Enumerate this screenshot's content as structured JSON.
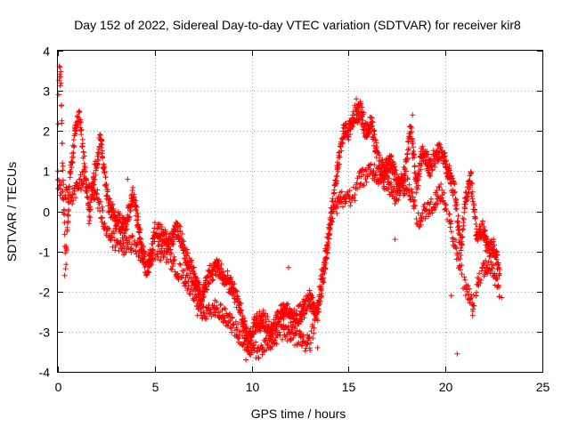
{
  "chart_data": {
    "type": "scatter",
    "title": "Day 152 of 2022, Sidereal Day-to-day VTEC variation (SDTVAR) for receiver kir8",
    "xlabel": "GPS time / hours",
    "ylabel": "SDTVAR / TECUs",
    "xlim": [
      0,
      25
    ],
    "ylim": [
      -4,
      4
    ],
    "xticks": [
      0,
      5,
      10,
      15,
      20,
      25
    ],
    "yticks": [
      -4,
      -3,
      -2,
      -1,
      0,
      1,
      2,
      3,
      4
    ],
    "xtick_labels": [
      "0",
      "5",
      "10",
      "15",
      "20",
      "25"
    ],
    "ytick_labels": [
      "-4",
      "-3",
      "-2",
      "-1",
      "0",
      "1",
      "2",
      "3",
      "4"
    ],
    "grid": true,
    "marker": "+",
    "series": [
      {
        "name": "SDTVAR",
        "color": "#ff0000",
        "trend": [
          [
            0.0,
            1.2
          ],
          [
            0.05,
            3.5
          ],
          [
            0.15,
            3.3
          ],
          [
            0.25,
            1.0
          ],
          [
            0.4,
            -1.3
          ],
          [
            0.6,
            0.7
          ],
          [
            0.9,
            2.1
          ],
          [
            1.1,
            2.4
          ],
          [
            1.4,
            1.0
          ],
          [
            1.6,
            -0.2
          ],
          [
            1.9,
            1.0
          ],
          [
            2.2,
            1.8
          ],
          [
            2.4,
            1.0
          ],
          [
            2.6,
            0.2
          ],
          [
            3.0,
            -0.2
          ],
          [
            3.5,
            -0.4
          ],
          [
            3.9,
            0.5
          ],
          [
            4.2,
            -0.5
          ],
          [
            4.6,
            -1.6
          ],
          [
            5.0,
            -0.5
          ],
          [
            5.4,
            -0.6
          ],
          [
            5.8,
            -0.8
          ],
          [
            6.2,
            -0.4
          ],
          [
            6.6,
            -1.1
          ],
          [
            7.0,
            -1.6
          ],
          [
            7.4,
            -2.2
          ],
          [
            7.8,
            -1.6
          ],
          [
            8.2,
            -1.4
          ],
          [
            8.6,
            -1.6
          ],
          [
            9.0,
            -1.9
          ],
          [
            9.4,
            -2.4
          ],
          [
            9.8,
            -3.2
          ],
          [
            10.2,
            -2.8
          ],
          [
            10.6,
            -2.7
          ],
          [
            11.0,
            -3.0
          ],
          [
            11.4,
            -2.6
          ],
          [
            11.8,
            -2.5
          ],
          [
            12.2,
            -2.7
          ],
          [
            12.6,
            -2.5
          ],
          [
            13.0,
            -2.2
          ],
          [
            13.4,
            -2.6
          ],
          [
            13.7,
            -1.6
          ],
          [
            14.0,
            -0.5
          ],
          [
            14.4,
            1.0
          ],
          [
            14.7,
            1.9
          ],
          [
            15.0,
            2.0
          ],
          [
            15.3,
            2.4
          ],
          [
            15.6,
            2.5
          ],
          [
            15.9,
            2.0
          ],
          [
            16.2,
            2.2
          ],
          [
            16.5,
            1.3
          ],
          [
            16.8,
            1.0
          ],
          [
            17.2,
            1.2
          ],
          [
            17.6,
            0.6
          ],
          [
            17.9,
            0.9
          ],
          [
            18.2,
            2.1
          ],
          [
            18.5,
            0.6
          ],
          [
            18.8,
            1.5
          ],
          [
            19.2,
            1.1
          ],
          [
            19.6,
            1.5
          ],
          [
            19.9,
            1.3
          ],
          [
            20.2,
            0.9
          ],
          [
            20.5,
            0.4
          ],
          [
            20.8,
            -1.0
          ],
          [
            21.0,
            0.2
          ],
          [
            21.3,
            0.9
          ],
          [
            21.6,
            -0.6
          ],
          [
            21.9,
            -0.4
          ],
          [
            22.2,
            -1.0
          ],
          [
            22.5,
            -0.9
          ],
          [
            22.8,
            -1.5
          ]
        ],
        "trend2": [
          [
            0.0,
            0.6
          ],
          [
            0.6,
            0.3
          ],
          [
            1.3,
            0.8
          ],
          [
            2.0,
            0.4
          ],
          [
            2.6,
            -0.6
          ],
          [
            3.2,
            -0.9
          ],
          [
            4.0,
            -0.8
          ],
          [
            4.6,
            -1.3
          ],
          [
            5.2,
            -1.0
          ],
          [
            5.8,
            -1.2
          ],
          [
            6.4,
            -1.6
          ],
          [
            7.0,
            -2.0
          ],
          [
            7.6,
            -2.6
          ],
          [
            8.2,
            -2.4
          ],
          [
            8.8,
            -2.7
          ],
          [
            9.4,
            -3.1
          ],
          [
            10.0,
            -3.5
          ],
          [
            10.6,
            -3.4
          ],
          [
            11.2,
            -3.1
          ],
          [
            11.8,
            -3.0
          ],
          [
            12.4,
            -3.2
          ],
          [
            13.0,
            -3.3
          ],
          [
            13.4,
            -2.4
          ],
          [
            13.8,
            -1.0
          ],
          [
            14.2,
            0.0
          ],
          [
            14.6,
            0.3
          ],
          [
            15.2,
            0.3
          ],
          [
            15.6,
            0.8
          ],
          [
            16.2,
            1.0
          ],
          [
            16.8,
            0.8
          ],
          [
            17.4,
            0.4
          ],
          [
            18.0,
            0.7
          ],
          [
            18.6,
            -0.2
          ],
          [
            19.2,
            0.1
          ],
          [
            19.8,
            0.5
          ],
          [
            20.4,
            -0.6
          ],
          [
            21.0,
            -1.9
          ],
          [
            21.4,
            -2.3
          ],
          [
            21.8,
            -1.6
          ],
          [
            22.3,
            -1.3
          ],
          [
            22.8,
            -2.0
          ]
        ],
        "outliers": [
          [
            0.35,
            -1.6
          ],
          [
            2.3,
            1.5
          ],
          [
            3.6,
            0.8
          ],
          [
            5.6,
            -1.0
          ],
          [
            7.2,
            -2.6
          ],
          [
            9.7,
            -3.7
          ],
          [
            11.9,
            -1.4
          ],
          [
            13.4,
            -3.4
          ],
          [
            15.4,
            2.8
          ],
          [
            17.4,
            -0.7
          ],
          [
            18.3,
            2.4
          ],
          [
            20.3,
            -2.1
          ],
          [
            20.6,
            -3.55
          ],
          [
            21.4,
            -2.6
          ],
          [
            22.0,
            -1.3
          ],
          [
            22.9,
            -2.15
          ]
        ]
      }
    ]
  }
}
